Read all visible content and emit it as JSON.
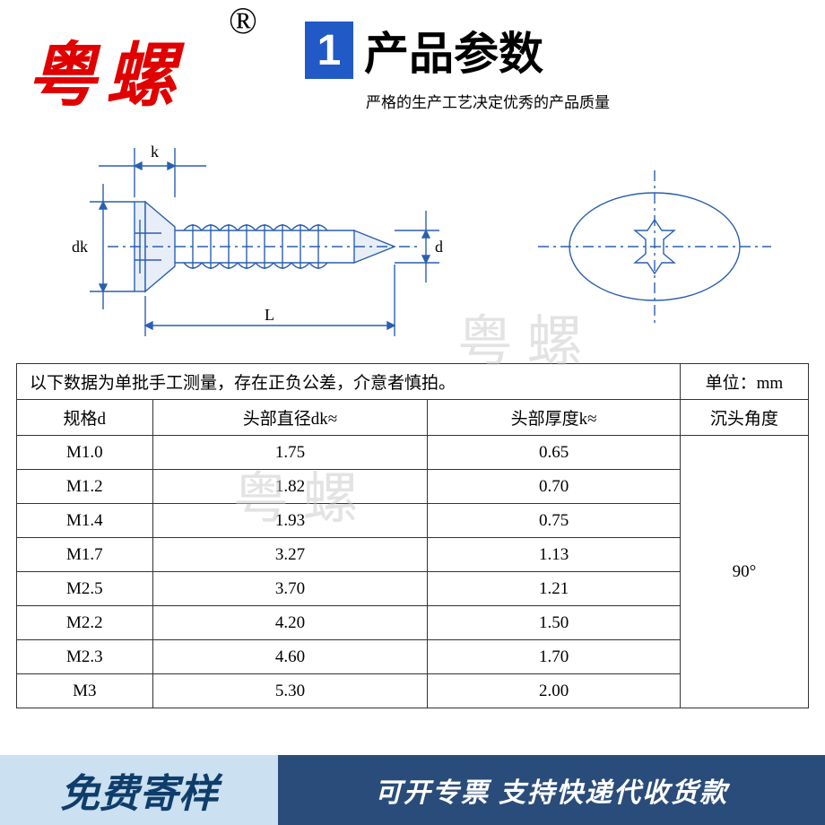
{
  "brand": {
    "text": "粤螺",
    "color": "#e00000"
  },
  "reg_symbol": "®",
  "header": {
    "num": "1",
    "num_bg": "#2159c6",
    "title": "产品参数",
    "subtitle": "严格的生产工艺决定优秀的产品质量"
  },
  "diagram": {
    "labels": {
      "k": "k",
      "dk": "dk",
      "d": "d",
      "L": "L"
    },
    "line_color": "#2a5fb0"
  },
  "watermark": "粤 螺",
  "table": {
    "note": "以下数据为单批手工测量，存在正负公差，介意者慎拍。",
    "unit_label": "单位：mm",
    "columns": [
      "规格d",
      "头部直径dk≈",
      "头部厚度k≈",
      "沉头角度"
    ],
    "rows": [
      [
        "M1.0",
        "1.75",
        "0.65"
      ],
      [
        "M1.2",
        "1.82",
        "0.70"
      ],
      [
        "M1.4",
        "1.93",
        "0.75"
      ],
      [
        "M1.7",
        "3.27",
        "1.13"
      ],
      [
        "M2.5",
        "3.70",
        "1.21"
      ],
      [
        "M2.2",
        "4.20",
        "1.50"
      ],
      [
        "M2.3",
        "4.60",
        "1.70"
      ],
      [
        "M3",
        "5.30",
        "2.00"
      ]
    ],
    "angle_value": "90°"
  },
  "footer": {
    "left": "免费寄样",
    "right": "可开专票 支持快递代收货款",
    "left_bg": "#cbe0f0",
    "left_color": "#0f3d6b",
    "right_bg": "#2a4c7a"
  }
}
